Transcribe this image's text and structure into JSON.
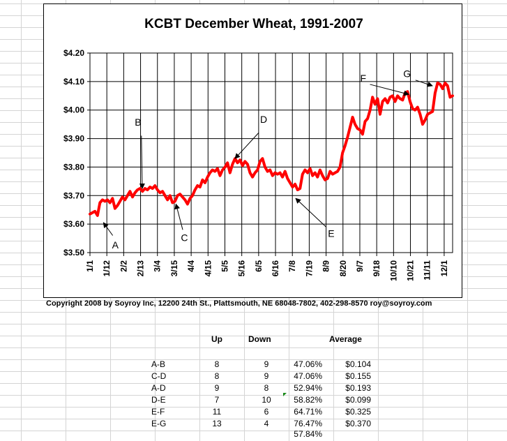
{
  "chart_data": {
    "type": "line",
    "title": "KCBT December Wheat, 1991-2007",
    "xlabel": "",
    "ylabel": "",
    "ylim": [
      3.5,
      4.2
    ],
    "yticks": [
      "$3.50",
      "$3.60",
      "$3.70",
      "$3.80",
      "$3.90",
      "$4.00",
      "$4.10",
      "$4.20"
    ],
    "ytick_values": [
      3.5,
      3.6,
      3.7,
      3.8,
      3.9,
      4.0,
      4.1,
      4.2
    ],
    "xticks": [
      "1/1",
      "1/12",
      "2/2",
      "2/13",
      "3/4",
      "3/15",
      "4/4",
      "4/15",
      "5/5",
      "5/16",
      "6/5",
      "6/16",
      "7/8",
      "7/19",
      "8/9",
      "8/20",
      "9/7",
      "9/18",
      "10/10",
      "10/21",
      "11/11",
      "12/1"
    ],
    "grid": true,
    "legend": "none",
    "series": [
      {
        "color": "#ff0000",
        "values": [
          3.635,
          3.64,
          3.645,
          3.63,
          3.675,
          3.685,
          3.68,
          3.685,
          3.675,
          3.69,
          3.655,
          3.665,
          3.68,
          3.695,
          3.685,
          3.7,
          3.715,
          3.695,
          3.71,
          3.72,
          3.725,
          3.715,
          3.725,
          3.72,
          3.73,
          3.725,
          3.735,
          3.72,
          3.71,
          3.715,
          3.7,
          3.685,
          3.7,
          3.675,
          3.68,
          3.7,
          3.705,
          3.695,
          3.685,
          3.67,
          3.69,
          3.7,
          3.72,
          3.735,
          3.73,
          3.755,
          3.745,
          3.765,
          3.78,
          3.79,
          3.785,
          3.795,
          3.77,
          3.79,
          3.8,
          3.815,
          3.78,
          3.81,
          3.83,
          3.815,
          3.825,
          3.805,
          3.82,
          3.81,
          3.78,
          3.765,
          3.78,
          3.79,
          3.82,
          3.83,
          3.8,
          3.785,
          3.79,
          3.77,
          3.78,
          3.775,
          3.78,
          3.765,
          3.785,
          3.76,
          3.745,
          3.73,
          3.74,
          3.72,
          3.725,
          3.775,
          3.79,
          3.78,
          3.795,
          3.77,
          3.78,
          3.765,
          3.79,
          3.77,
          3.755,
          3.76,
          3.785,
          3.775,
          3.78,
          3.785,
          3.8,
          3.85,
          3.875,
          3.905,
          3.94,
          3.975,
          3.95,
          3.935,
          3.93,
          3.915,
          3.96,
          3.97,
          4.0,
          4.045,
          4.02,
          4.04,
          3.985,
          4.03,
          4.04,
          4.025,
          4.045,
          4.05,
          4.03,
          4.05,
          4.04,
          4.035,
          4.06,
          4.065,
          4.03,
          4.005,
          4.0,
          4.01,
          3.985,
          3.95,
          3.965,
          3.985,
          3.99,
          3.995,
          4.06,
          4.095,
          4.09,
          4.075,
          4.095,
          4.085,
          4.045,
          4.05
        ]
      }
    ],
    "annotations": [
      {
        "label": "A",
        "text_at": [
          1.5,
          3.515
        ],
        "arrow_from": [
          1.35,
          3.56
        ],
        "arrow_to": [
          0.8,
          3.605
        ]
      },
      {
        "label": "B",
        "text_at": [
          2.85,
          3.945
        ],
        "arrow_from": [
          3.05,
          3.91
        ],
        "arrow_to": [
          3.1,
          3.725
        ]
      },
      {
        "label": "C",
        "text_at": [
          5.6,
          3.54
        ],
        "arrow_from": [
          5.5,
          3.58
        ],
        "arrow_to": [
          5.1,
          3.67
        ]
      },
      {
        "label": "D",
        "text_at": [
          10.3,
          3.955
        ],
        "arrow_from": [
          10.0,
          3.92
        ],
        "arrow_to": [
          8.6,
          3.83
        ]
      },
      {
        "label": "E",
        "text_at": [
          14.3,
          3.555
        ],
        "arrow_from": [
          14.0,
          3.59
        ],
        "arrow_to": [
          12.2,
          3.69
        ]
      },
      {
        "label": "F",
        "text_at": [
          16.2,
          4.1
        ],
        "arrow_from": [
          16.6,
          4.09
        ],
        "arrow_to": [
          18.9,
          4.055
        ]
      },
      {
        "label": "G",
        "text_at": [
          18.8,
          4.115
        ],
        "arrow_from": [
          19.3,
          4.105
        ],
        "arrow_to": [
          20.3,
          4.085
        ]
      }
    ]
  },
  "copyright": "Copyright 2008 by Soyroy Inc, 12200 24th St., Plattsmouth, NE 68048-7802, 402-298-8570 roy@soyroy.com",
  "table": {
    "headers": {
      "up": "Up",
      "down": "Down",
      "average": "Average"
    },
    "rows": [
      {
        "label": "A-B",
        "up": "8",
        "down": "9",
        "pct": "47.06%",
        "avg": "$0.104"
      },
      {
        "label": "C-D",
        "up": "8",
        "down": "9",
        "pct": "47.06%",
        "avg": "$0.155"
      },
      {
        "label": "A-D",
        "up": "9",
        "down": "8",
        "pct": "52.94%",
        "avg": "$0.193"
      },
      {
        "label": "D-E",
        "up": "7",
        "down": "10",
        "pct": "58.82%",
        "avg": "$0.099"
      },
      {
        "label": "E-F",
        "up": "11",
        "down": "6",
        "pct": "64.71%",
        "avg": "$0.325"
      },
      {
        "label": "E-G",
        "up": "13",
        "down": "4",
        "pct": "76.47%",
        "avg": "$0.370"
      }
    ],
    "total_pct": "57.84%"
  }
}
